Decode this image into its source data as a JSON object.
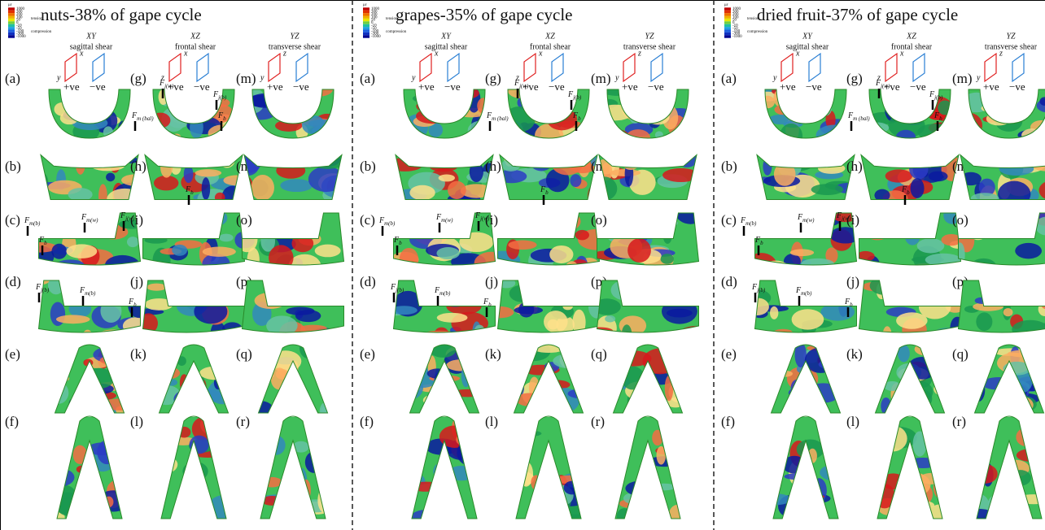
{
  "legend": {
    "unit": "με",
    "ticks": [
      "1000",
      "300",
      "200",
      "100",
      "50",
      "0",
      "-10",
      "-50",
      "-100",
      "-300",
      "-1000"
    ],
    "tension": "tension",
    "compression": "compression"
  },
  "columns": [
    {
      "axis": "XY",
      "name": "sagittal shear"
    },
    {
      "axis": "XZ",
      "name": "frontal shear"
    },
    {
      "axis": "YZ",
      "name": "transverse shear"
    }
  ],
  "row_labels": [
    "(a)",
    "(b)",
    "(c)",
    "(d)",
    "(e)",
    "(f)",
    "(g)",
    "(h)",
    "(i)",
    "(j)",
    "(k)",
    "(l)",
    "(m)",
    "(n)",
    "(o)",
    "(p)",
    "(q)",
    "(r)"
  ],
  "signs": {
    "positive": "+ve",
    "negative": "−ve",
    "x": "x",
    "y": "y",
    "z": "z"
  },
  "panels": [
    {
      "title": "nuts-38% of gape cycle",
      "forces": [
        {
          "main": "F",
          "sub": "j(w)"
        },
        {
          "main": "F",
          "sub": "m (bal)"
        },
        {
          "main": "F",
          "sub": "j(b)"
        },
        {
          "main": "F",
          "sub": "b"
        },
        {
          "main": "F",
          "sub": "b"
        },
        {
          "main": "F",
          "sub": "m(b)"
        },
        {
          "main": "F",
          "sub": "b"
        },
        {
          "main": "F",
          "sub": "m(w)"
        },
        {
          "main": "F",
          "sub": "j(w)"
        },
        {
          "main": "F",
          "sub": "j(b)"
        },
        {
          "main": "F",
          "sub": "m(b)"
        },
        {
          "main": "F",
          "sub": "b"
        }
      ]
    },
    {
      "title": "grapes-35% of gape cycle",
      "forces": [
        {
          "main": "F",
          "sub": "j(w)"
        },
        {
          "main": "F",
          "sub": "m (bal)"
        },
        {
          "main": "F",
          "sub": "j(b)"
        },
        {
          "main": "F",
          "sub": "b"
        },
        {
          "main": "F",
          "sub": "b"
        },
        {
          "main": "F",
          "sub": "m(b)"
        },
        {
          "main": "F",
          "sub": "b"
        },
        {
          "main": "F",
          "sub": "m(w)"
        },
        {
          "main": "F",
          "sub": "j(w)"
        },
        {
          "main": "F",
          "sub": "j(b)"
        },
        {
          "main": "F",
          "sub": "m(b)"
        },
        {
          "main": "F",
          "sub": "b"
        }
      ]
    },
    {
      "title": "dried fruit-37% of gape cycle",
      "forces": [
        {
          "main": "F",
          "sub": "j(w)"
        },
        {
          "main": "F",
          "sub": "m (bal)"
        },
        {
          "main": "F",
          "sub": "j(b)"
        },
        {
          "main": "F",
          "sub": "b"
        },
        {
          "main": "F",
          "sub": "b"
        },
        {
          "main": "F",
          "sub": "m(b)"
        },
        {
          "main": "F",
          "sub": "b"
        },
        {
          "main": "F",
          "sub": "m(w)"
        },
        {
          "main": "F",
          "sub": "j(w)"
        },
        {
          "main": "F",
          "sub": "j(b)"
        },
        {
          "main": "F",
          "sub": "m(b)"
        },
        {
          "main": "F",
          "sub": "b"
        }
      ]
    }
  ]
}
